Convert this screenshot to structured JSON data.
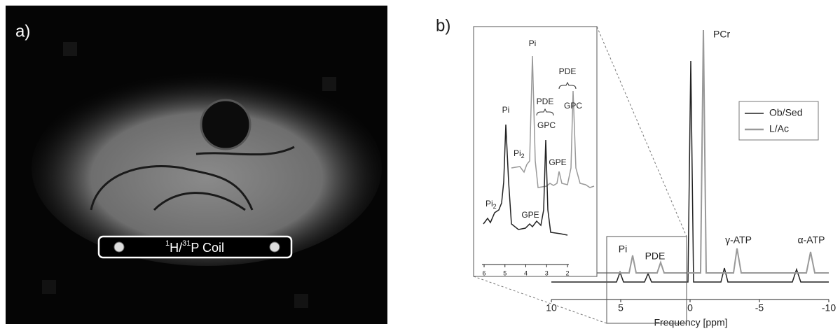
{
  "panel_a": {
    "label": "a)",
    "coil_label": {
      "parts": [
        "1",
        "H/",
        "31",
        "P Coil"
      ]
    }
  },
  "panel_b": {
    "label": "b)",
    "x_axis": {
      "label": "Frequency [ppm]",
      "lim": [
        10,
        -10
      ],
      "ticks": [
        10,
        5,
        0,
        -5,
        -10
      ]
    },
    "legend": [
      {
        "name": "Ob/Sed",
        "color": "#222222"
      },
      {
        "name": "L/Ac",
        "color": "#999999"
      }
    ],
    "peak_labels": [
      "PCr",
      "Pi",
      "PDE",
      "γ-ATP",
      "α-ATP"
    ],
    "inset": {
      "lim": [
        6,
        2
      ],
      "ticks": [
        6,
        5,
        4,
        3,
        2
      ],
      "labels": [
        {
          "text": "Pi"
        },
        {
          "text": "PDE"
        },
        {
          "text": "PDE"
        },
        {
          "text": "GPC"
        },
        {
          "text": "GPC"
        },
        {
          "text": "Pi"
        },
        {
          "text": "Pi",
          "sub": "2"
        },
        {
          "text": "GPE"
        },
        {
          "text": "Pi",
          "sub": "2"
        },
        {
          "text": "GPE"
        }
      ]
    }
  }
}
